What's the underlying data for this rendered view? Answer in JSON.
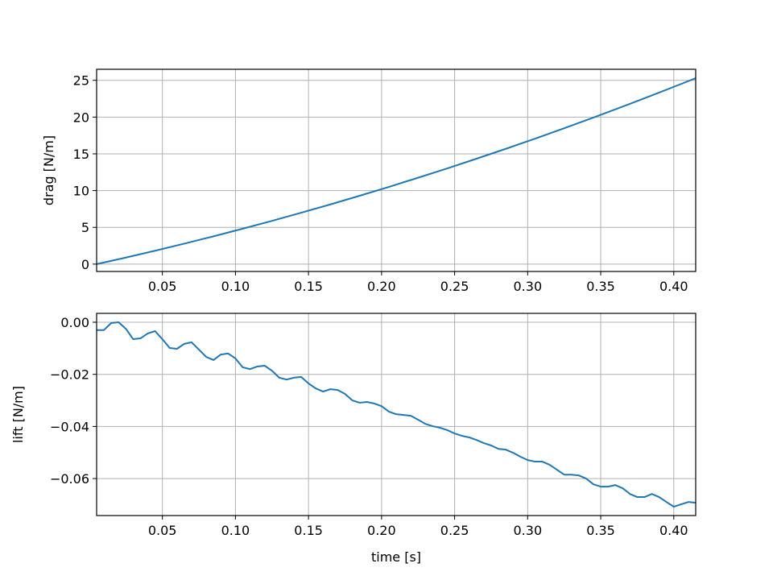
{
  "chart_data": [
    {
      "type": "line",
      "ylabel": "drag [N/m]",
      "color": "#1f77b4",
      "grid": true,
      "x": [
        0.005,
        0.025,
        0.045,
        0.065,
        0.085,
        0.105,
        0.125,
        0.145,
        0.165,
        0.185,
        0.205,
        0.225,
        0.245,
        0.265,
        0.285,
        0.305,
        0.325,
        0.345,
        0.365,
        0.385,
        0.405,
        0.415
      ],
      "values": [
        0,
        0.89,
        1.82,
        2.79,
        3.78,
        4.82,
        5.88,
        6.99,
        8.12,
        9.3,
        10.5,
        11.75,
        13.02,
        14.34,
        15.68,
        17.06,
        18.48,
        19.93,
        21.42,
        22.94,
        24.5,
        25.29
      ],
      "xlim": [
        0.005,
        0.415
      ],
      "xticks": [
        0.05,
        {
          "value": 0.1,
          "label": "0.10"
        },
        0.15,
        {
          "value": 0.2,
          "label": "0.20"
        },
        0.25,
        {
          "value": 0.3,
          "label": "0.30"
        },
        0.35,
        {
          "value": 0.4,
          "label": "0.40"
        }
      ],
      "ylim": [
        -1.0,
        26.5
      ],
      "yticks": [
        0,
        5,
        10,
        15,
        20,
        25
      ]
    },
    {
      "type": "line",
      "ylabel": "lift [N/m]",
      "xlabel": "time [s]",
      "color": "#1f77b4",
      "grid": true,
      "x": [
        0.005,
        0.01,
        0.015,
        0.02,
        0.025,
        0.03,
        0.035,
        0.04,
        0.045,
        0.05,
        0.055,
        0.06,
        0.065,
        0.07,
        0.075,
        0.08,
        0.085,
        0.09,
        0.095,
        0.1,
        0.105,
        0.11,
        0.115,
        0.12,
        0.125,
        0.13,
        0.135,
        0.14,
        0.145,
        0.15,
        0.155,
        0.16,
        0.165,
        0.17,
        0.175,
        0.18,
        0.185,
        0.19,
        0.195,
        0.2,
        0.205,
        0.21,
        0.215,
        0.22,
        0.225,
        0.23,
        0.235,
        0.24,
        0.245,
        0.25,
        0.255,
        0.26,
        0.265,
        0.27,
        0.275,
        0.28,
        0.285,
        0.29,
        0.295,
        0.3,
        0.305,
        0.31,
        0.315,
        0.32,
        0.325,
        0.33,
        0.335,
        0.34,
        0.345,
        0.35,
        0.355,
        0.36,
        0.365,
        0.37,
        0.375,
        0.38,
        0.385,
        0.39,
        0.395,
        0.4,
        0.405,
        0.41,
        0.415
      ],
      "values": [
        -0.003,
        -0.003,
        -0.0003,
        0,
        -0.0025,
        -0.0065,
        -0.0062,
        -0.0043,
        -0.0034,
        -0.0065,
        -0.0099,
        -0.0102,
        -0.0083,
        -0.0077,
        -0.0105,
        -0.0133,
        -0.0145,
        -0.0124,
        -0.012,
        -0.0139,
        -0.0173,
        -0.018,
        -0.017,
        -0.0167,
        -0.0186,
        -0.0213,
        -0.022,
        -0.0213,
        -0.021,
        -0.0235,
        -0.0254,
        -0.0266,
        -0.0257,
        -0.026,
        -0.0275,
        -0.03,
        -0.0309,
        -0.0306,
        -0.0312,
        -0.0322,
        -0.0343,
        -0.0353,
        -0.0356,
        -0.0359,
        -0.0374,
        -0.039,
        -0.0399,
        -0.0405,
        -0.0414,
        -0.0427,
        -0.0436,
        -0.0442,
        -0.0452,
        -0.0464,
        -0.0473,
        -0.0486,
        -0.0489,
        -0.0501,
        -0.0516,
        -0.0529,
        -0.0535,
        -0.0535,
        -0.0547,
        -0.0566,
        -0.0585,
        -0.0585,
        -0.0588,
        -0.06,
        -0.0622,
        -0.0631,
        -0.0631,
        -0.0625,
        -0.0637,
        -0.0659,
        -0.0671,
        -0.0671,
        -0.0659,
        -0.0671,
        -0.069,
        -0.0708,
        -0.0699,
        -0.069,
        -0.0693
      ],
      "xlim": [
        0.005,
        0.415
      ],
      "xticks": [
        0.05,
        {
          "value": 0.1,
          "label": "0.10"
        },
        0.15,
        {
          "value": 0.2,
          "label": "0.20"
        },
        0.25,
        {
          "value": 0.3,
          "label": "0.30"
        },
        0.35,
        {
          "value": 0.4,
          "label": "0.40"
        }
      ],
      "ylim": [
        -0.0742,
        0.0034
      ],
      "yticks": [
        {
          "value": 0,
          "label": "0.00"
        },
        {
          "value": -0.02,
          "label": "−0.02"
        },
        {
          "value": -0.04,
          "label": "−0.04"
        },
        {
          "value": -0.06,
          "label": "−0.06"
        }
      ]
    }
  ]
}
